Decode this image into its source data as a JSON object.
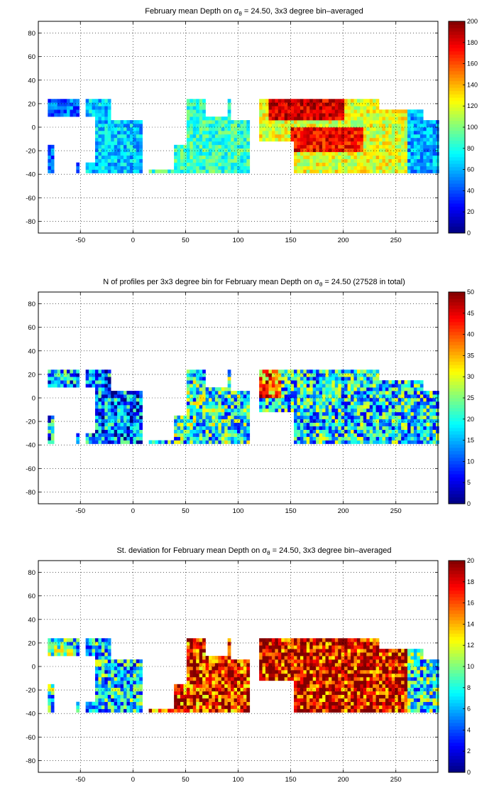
{
  "chart_data": [
    {
      "type": "heatmap",
      "title_pre": "February mean Depth on ",
      "title_sym": "σ",
      "title_sub": "θ",
      "title_post": " = 24.50, 3x3 degree bin–averaged",
      "xlabel": "",
      "ylabel": "",
      "xlim": [
        -90,
        290
      ],
      "ylim": [
        -90,
        90
      ],
      "xticks": [
        -50,
        0,
        50,
        100,
        150,
        200,
        250
      ],
      "yticks": [
        -80,
        -60,
        -40,
        -20,
        0,
        20,
        40,
        60,
        80
      ],
      "colorbar": {
        "min": 0,
        "max": 200,
        "ticks": [
          0,
          20,
          40,
          60,
          80,
          100,
          120,
          140,
          160,
          180,
          200
        ]
      },
      "grid": true,
      "colormap": "jet",
      "bin_size_deg": 3,
      "regions": [
        {
          "lon": [
            -80,
            -50
          ],
          "lat": [
            -40,
            25
          ],
          "value": 45
        },
        {
          "lon": [
            -45,
            10
          ],
          "lat": [
            -40,
            25
          ],
          "value": 65
        },
        {
          "lon": [
            15,
            110
          ],
          "lat": [
            -40,
            25
          ],
          "value": 85
        },
        {
          "lon": [
            120,
            260
          ],
          "lat": [
            -40,
            25
          ],
          "value": 120
        },
        {
          "lon": [
            260,
            290
          ],
          "lat": [
            -40,
            25
          ],
          "value": 60
        },
        {
          "lon": [
            130,
            200
          ],
          "lat": [
            5,
            25
          ],
          "value": 185
        },
        {
          "lon": [
            150,
            220
          ],
          "lat": [
            -20,
            0
          ],
          "value": 175
        }
      ]
    },
    {
      "type": "heatmap",
      "title_pre": "N of profiles per 3x3 degree bin for February mean Depth on ",
      "title_sym": "σ",
      "title_sub": "θ",
      "title_post": " = 24.50 (27528 in total)",
      "xlabel": "",
      "ylabel": "",
      "xlim": [
        -90,
        290
      ],
      "ylim": [
        -90,
        90
      ],
      "xticks": [
        -50,
        0,
        50,
        100,
        150,
        200,
        250
      ],
      "yticks": [
        -80,
        -60,
        -40,
        -20,
        0,
        20,
        40,
        60,
        80
      ],
      "colorbar": {
        "min": 0,
        "max": 50,
        "ticks": [
          0,
          5,
          10,
          15,
          20,
          25,
          30,
          35,
          40,
          45,
          50
        ]
      },
      "grid": true,
      "colormap": "jet",
      "bin_size_deg": 3,
      "regions": [
        {
          "lon": [
            -80,
            -50
          ],
          "lat": [
            -40,
            25
          ],
          "value": 15
        },
        {
          "lon": [
            -45,
            10
          ],
          "lat": [
            -40,
            25
          ],
          "value": 12
        },
        {
          "lon": [
            15,
            110
          ],
          "lat": [
            -40,
            25
          ],
          "value": 20
        },
        {
          "lon": [
            120,
            290
          ],
          "lat": [
            -40,
            25
          ],
          "value": 18
        },
        {
          "lon": [
            120,
            140
          ],
          "lat": [
            0,
            25
          ],
          "value": 38
        }
      ]
    },
    {
      "type": "heatmap",
      "title_pre": "St. deviation for February mean Depth on ",
      "title_sym": "σ",
      "title_sub": "θ",
      "title_post": " = 24.50, 3x3 degree bin–averaged",
      "xlabel": "",
      "ylabel": "",
      "xlim": [
        -90,
        290
      ],
      "ylim": [
        -90,
        90
      ],
      "xticks": [
        -50,
        0,
        50,
        100,
        150,
        200,
        250
      ],
      "yticks": [
        -80,
        -60,
        -40,
        -20,
        0,
        20,
        40,
        60,
        80
      ],
      "colorbar": {
        "min": 0,
        "max": 20,
        "ticks": [
          0,
          2,
          4,
          6,
          8,
          10,
          12,
          14,
          16,
          18,
          20
        ]
      },
      "grid": true,
      "colormap": "jet",
      "bin_size_deg": 3,
      "regions": [
        {
          "lon": [
            -80,
            -50
          ],
          "lat": [
            -40,
            25
          ],
          "value": 8
        },
        {
          "lon": [
            -45,
            10
          ],
          "lat": [
            -40,
            25
          ],
          "value": 7
        },
        {
          "lon": [
            15,
            110
          ],
          "lat": [
            -40,
            25
          ],
          "value": 17
        },
        {
          "lon": [
            120,
            260
          ],
          "lat": [
            -40,
            25
          ],
          "value": 18
        },
        {
          "lon": [
            260,
            290
          ],
          "lat": [
            -40,
            25
          ],
          "value": 8
        }
      ]
    }
  ]
}
